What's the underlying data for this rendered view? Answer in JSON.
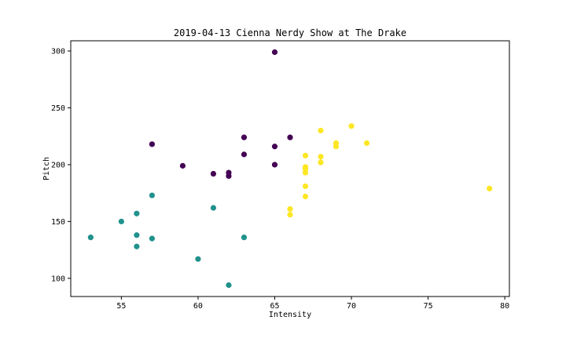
{
  "chart_data": {
    "type": "scatter",
    "title": "2019-04-13 Cienna Nerdy Show at The Drake",
    "xlabel": "Intensity",
    "ylabel": "Pitch",
    "xlim": [
      51.7,
      80.3
    ],
    "ylim": [
      84,
      309
    ],
    "xticks": [
      55,
      60,
      65,
      70,
      75,
      80
    ],
    "yticks": [
      100,
      150,
      200,
      250,
      300
    ],
    "grid": false,
    "legend": "none",
    "colors": {
      "cluster_a": "#440154",
      "cluster_b": "#21918c",
      "cluster_c": "#fde725"
    },
    "series": [
      {
        "color_key": "cluster_a",
        "points": [
          [
            65,
            299
          ],
          [
            57,
            218
          ],
          [
            59,
            199
          ],
          [
            61,
            192
          ],
          [
            62,
            193
          ],
          [
            62,
            190
          ],
          [
            63,
            224
          ],
          [
            63,
            209
          ],
          [
            65,
            216
          ],
          [
            65,
            200
          ],
          [
            66,
            224
          ]
        ]
      },
      {
        "color_key": "cluster_b",
        "points": [
          [
            53,
            136
          ],
          [
            55,
            150
          ],
          [
            56,
            157
          ],
          [
            56,
            138
          ],
          [
            56,
            128
          ],
          [
            57,
            173
          ],
          [
            57,
            135
          ],
          [
            60,
            117
          ],
          [
            61,
            162
          ],
          [
            62,
            94
          ],
          [
            63,
            136
          ]
        ]
      },
      {
        "color_key": "cluster_c",
        "points": [
          [
            66,
            161
          ],
          [
            66,
            156
          ],
          [
            67,
            208
          ],
          [
            67,
            198
          ],
          [
            67,
            196
          ],
          [
            67,
            193
          ],
          [
            67,
            181
          ],
          [
            67,
            172
          ],
          [
            68,
            230
          ],
          [
            68,
            207
          ],
          [
            68,
            202
          ],
          [
            69,
            219
          ],
          [
            69,
            216
          ],
          [
            70,
            234
          ],
          [
            71,
            219
          ],
          [
            79,
            179
          ]
        ]
      }
    ]
  }
}
